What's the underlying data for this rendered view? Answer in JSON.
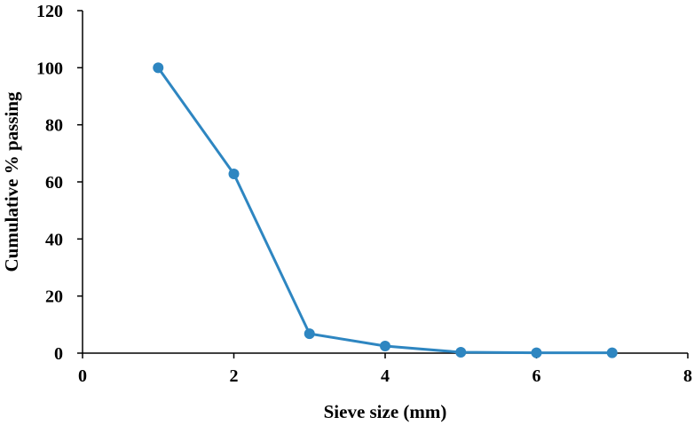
{
  "chart_data": {
    "type": "line",
    "title": "",
    "xlabel": "Sieve size (mm)",
    "ylabel": "Cumulative % passing",
    "xlim": [
      0,
      8
    ],
    "ylim": [
      0,
      120
    ],
    "xticks": [
      0,
      2,
      4,
      6,
      8
    ],
    "yticks": [
      0,
      20,
      40,
      60,
      80,
      100,
      120
    ],
    "grid": false,
    "legend": "none",
    "series": [
      {
        "color": "#2E86C1",
        "marker": "circle",
        "x": [
          1,
          2,
          3,
          4,
          5,
          6,
          7
        ],
        "y": [
          100,
          62.8,
          6.8,
          2.5,
          0.3,
          0.1,
          0.1
        ]
      }
    ]
  }
}
